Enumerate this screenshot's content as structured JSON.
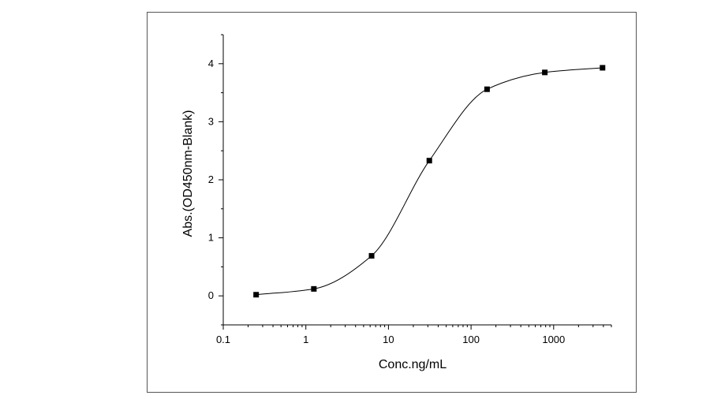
{
  "chart_data": {
    "type": "scatter",
    "title": "",
    "xlabel": "Conc.ng/mL",
    "ylabel": "Abs.(OD450nm-Blank)",
    "xscale": "log",
    "xlim": [
      0.1,
      5000
    ],
    "ylim": [
      -0.5,
      4.5
    ],
    "xticks": [
      0.1,
      1,
      10,
      100,
      1000
    ],
    "xtick_labels": [
      "0.1",
      "1",
      "10",
      "100",
      "1000"
    ],
    "yticks": [
      0,
      1,
      2,
      3,
      4
    ],
    "ytick_labels": [
      "0",
      "1",
      "2",
      "3",
      "4"
    ],
    "grid": false,
    "legend": "none",
    "series": [
      {
        "marker": "square",
        "color": "#000000",
        "fit_curve": "4-parameter logistic",
        "x": [
          0.25,
          1.25,
          6.25,
          31.25,
          156.25,
          781.25,
          3906.25
        ],
        "y": [
          0.02,
          0.12,
          0.69,
          2.33,
          3.56,
          3.85,
          3.93
        ]
      }
    ]
  }
}
